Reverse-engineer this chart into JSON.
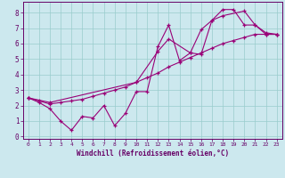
{
  "xlabel": "Windchill (Refroidissement éolien,°C)",
  "bg_color": "#cce8ee",
  "line_color": "#990077",
  "marker": "+",
  "xlim": [
    -0.5,
    23.5
  ],
  "ylim": [
    -0.15,
    8.7
  ],
  "xticks": [
    0,
    1,
    2,
    3,
    4,
    5,
    6,
    7,
    8,
    9,
    10,
    11,
    12,
    13,
    14,
    15,
    16,
    17,
    18,
    19,
    20,
    21,
    22,
    23
  ],
  "yticks": [
    0,
    1,
    2,
    3,
    4,
    5,
    6,
    7,
    8
  ],
  "series1_x": [
    0,
    1,
    2,
    3,
    4,
    5,
    6,
    7,
    8,
    9,
    10,
    11,
    12,
    13,
    14,
    15,
    16,
    17,
    18,
    19,
    20,
    21,
    22,
    23
  ],
  "series1_y": [
    2.5,
    2.2,
    1.8,
    1.0,
    0.4,
    1.3,
    1.2,
    2.0,
    0.7,
    1.5,
    2.9,
    2.9,
    5.8,
    7.2,
    4.9,
    5.4,
    5.3,
    7.5,
    8.2,
    8.2,
    7.2,
    7.2,
    6.7,
    6.6
  ],
  "series2_x": [
    0,
    2,
    10,
    12,
    13,
    15,
    16,
    17,
    18,
    20,
    21,
    22,
    23
  ],
  "series2_y": [
    2.5,
    2.2,
    3.5,
    5.5,
    6.3,
    5.4,
    6.9,
    7.5,
    7.8,
    8.1,
    7.2,
    6.6,
    6.6
  ],
  "series3_x": [
    0,
    1,
    2,
    3,
    4,
    5,
    6,
    7,
    8,
    9,
    10,
    11,
    12,
    13,
    14,
    15,
    16,
    17,
    18,
    19,
    20,
    21,
    22,
    23
  ],
  "series3_y": [
    2.5,
    2.3,
    2.1,
    2.2,
    2.3,
    2.4,
    2.6,
    2.8,
    3.0,
    3.2,
    3.5,
    3.8,
    4.1,
    4.5,
    4.8,
    5.1,
    5.4,
    5.7,
    6.0,
    6.2,
    6.4,
    6.6,
    6.6,
    6.6
  ],
  "grid_color": "#99cccc",
  "axis_color": "#660066",
  "tick_color": "#660066",
  "label_color": "#660066",
  "figsize": [
    3.2,
    2.0
  ],
  "dpi": 100
}
